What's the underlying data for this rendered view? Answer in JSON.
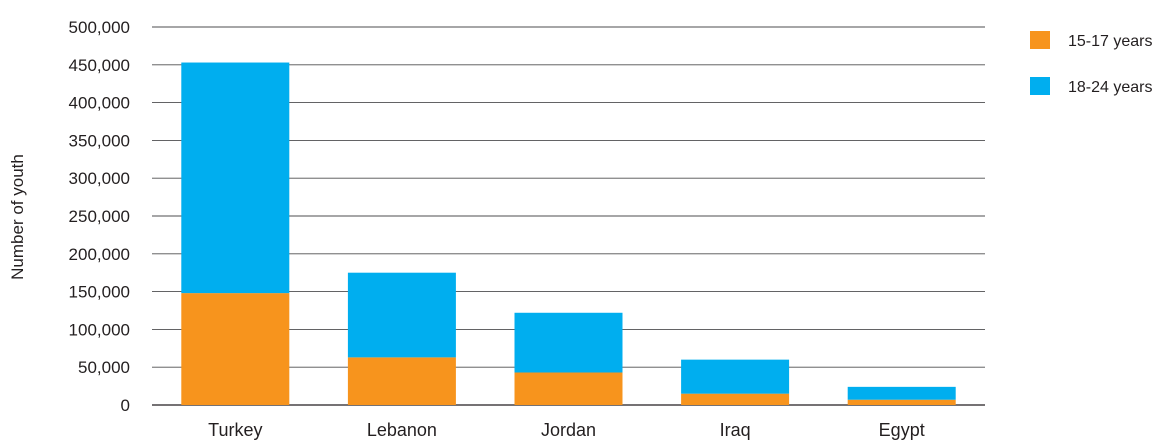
{
  "chart_data": {
    "type": "bar",
    "stacked": true,
    "title": "",
    "xlabel": "",
    "ylabel": "Number of youth",
    "ylim": [
      0,
      500000
    ],
    "yticks": [
      0,
      50000,
      100000,
      150000,
      200000,
      250000,
      300000,
      350000,
      400000,
      450000,
      500000
    ],
    "ytick_labels": [
      "0",
      "50,000",
      "100,000",
      "150,000",
      "200,000",
      "250,000",
      "300,000",
      "350,000",
      "400,000",
      "450,000",
      "500,000"
    ],
    "categories": [
      "Turkey",
      "Lebanon",
      "Jordan",
      "Iraq",
      "Egypt"
    ],
    "series": [
      {
        "name": "15-17 years",
        "color": "#f7941d",
        "values": [
          148000,
          63000,
          43000,
          15000,
          7000
        ]
      },
      {
        "name": "18-24 years",
        "color": "#00aeef",
        "values": [
          305000,
          112000,
          79000,
          45000,
          17000
        ]
      }
    ],
    "grid": true,
    "legend_position": "top-right"
  }
}
